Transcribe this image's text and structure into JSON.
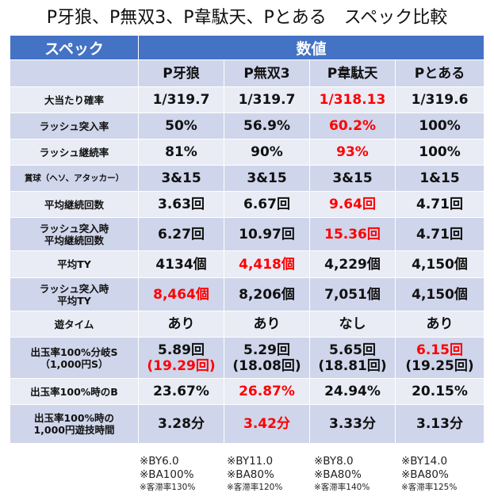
{
  "title": "P牙狼、P無双3、P韋駄天、Pとある　スペック比較",
  "header": {
    "spec_label": "スペック",
    "value_label": "数値"
  },
  "colors": {
    "header_bg": "#4472c4",
    "row_dark": "#cfd5ea",
    "row_light": "#e9ebf5",
    "highlight": "#ff0000"
  },
  "machines": [
    "P牙狼",
    "P無双3",
    "P韋駄天",
    "Pとある"
  ],
  "rows": [
    {
      "label": "大当たり確率",
      "values": [
        "1/319.7",
        "1/319.7",
        "1/318.13",
        "1/319.6"
      ]
    },
    {
      "label": "ラッシュ突入率",
      "values": [
        "50%",
        "56.9%",
        "60.2%",
        "100%"
      ]
    },
    {
      "label": "ラッシュ継続率",
      "values": [
        "81%",
        "90%",
        "93%",
        "100%"
      ]
    },
    {
      "label": "賞球（ヘソ、アタッカー）",
      "values": [
        "3&15",
        "3&15",
        "3&15",
        "1&15"
      ]
    },
    {
      "label": "平均継続回数",
      "values": [
        "3.63回",
        "6.67回",
        "9.64回",
        "4.71回"
      ]
    },
    {
      "label_line1": "ラッシュ突入時",
      "label_line2": "平均継続回数",
      "values": [
        "6.27回",
        "10.97回",
        "15.36回",
        "4.71回"
      ]
    },
    {
      "label": "平均TY",
      "values": [
        "4134個",
        "4,418個",
        "4,229個",
        "4,150個"
      ]
    },
    {
      "label_line1": "ラッシュ突入時",
      "label_line2": "平均TY",
      "values": [
        "8,464個",
        "8,206個",
        "7,051個",
        "4,150個"
      ]
    },
    {
      "label": "遊タイム",
      "values": [
        "あり",
        "あり",
        "なし",
        "あり"
      ]
    },
    {
      "label_line1": "出玉率100%分岐S",
      "label_line2": "（1,000円S）",
      "values": [
        "5.89回",
        "5.29回",
        "5.65回",
        "6.15回"
      ],
      "sub_values": [
        "(19.29回)",
        "(18.08回)",
        "(18.81回)",
        "(19.25回)"
      ]
    },
    {
      "label": "出玉率100%時のB",
      "values": [
        "23.67%",
        "26.87%",
        "24.94%",
        "20.15%"
      ]
    },
    {
      "label_line1": "出玉率100%時の",
      "label_line2": "1,000円遊技時間",
      "values": [
        "3.28分",
        "3.42分",
        "3.33分",
        "3.13分"
      ]
    }
  ],
  "notes": [
    {
      "by": "※BY6.0",
      "ba": "※BA100%",
      "stay": "※客滞率130%"
    },
    {
      "by": "※BY11.0",
      "ba": "※BA80%",
      "stay": "※客滞率120%"
    },
    {
      "by": "※BY8.0",
      "ba": "※BA80%",
      "stay": "※客滞率140%"
    },
    {
      "by": "※BY14.0",
      "ba": "※BA80%",
      "stay": "※客滞率125%"
    }
  ]
}
